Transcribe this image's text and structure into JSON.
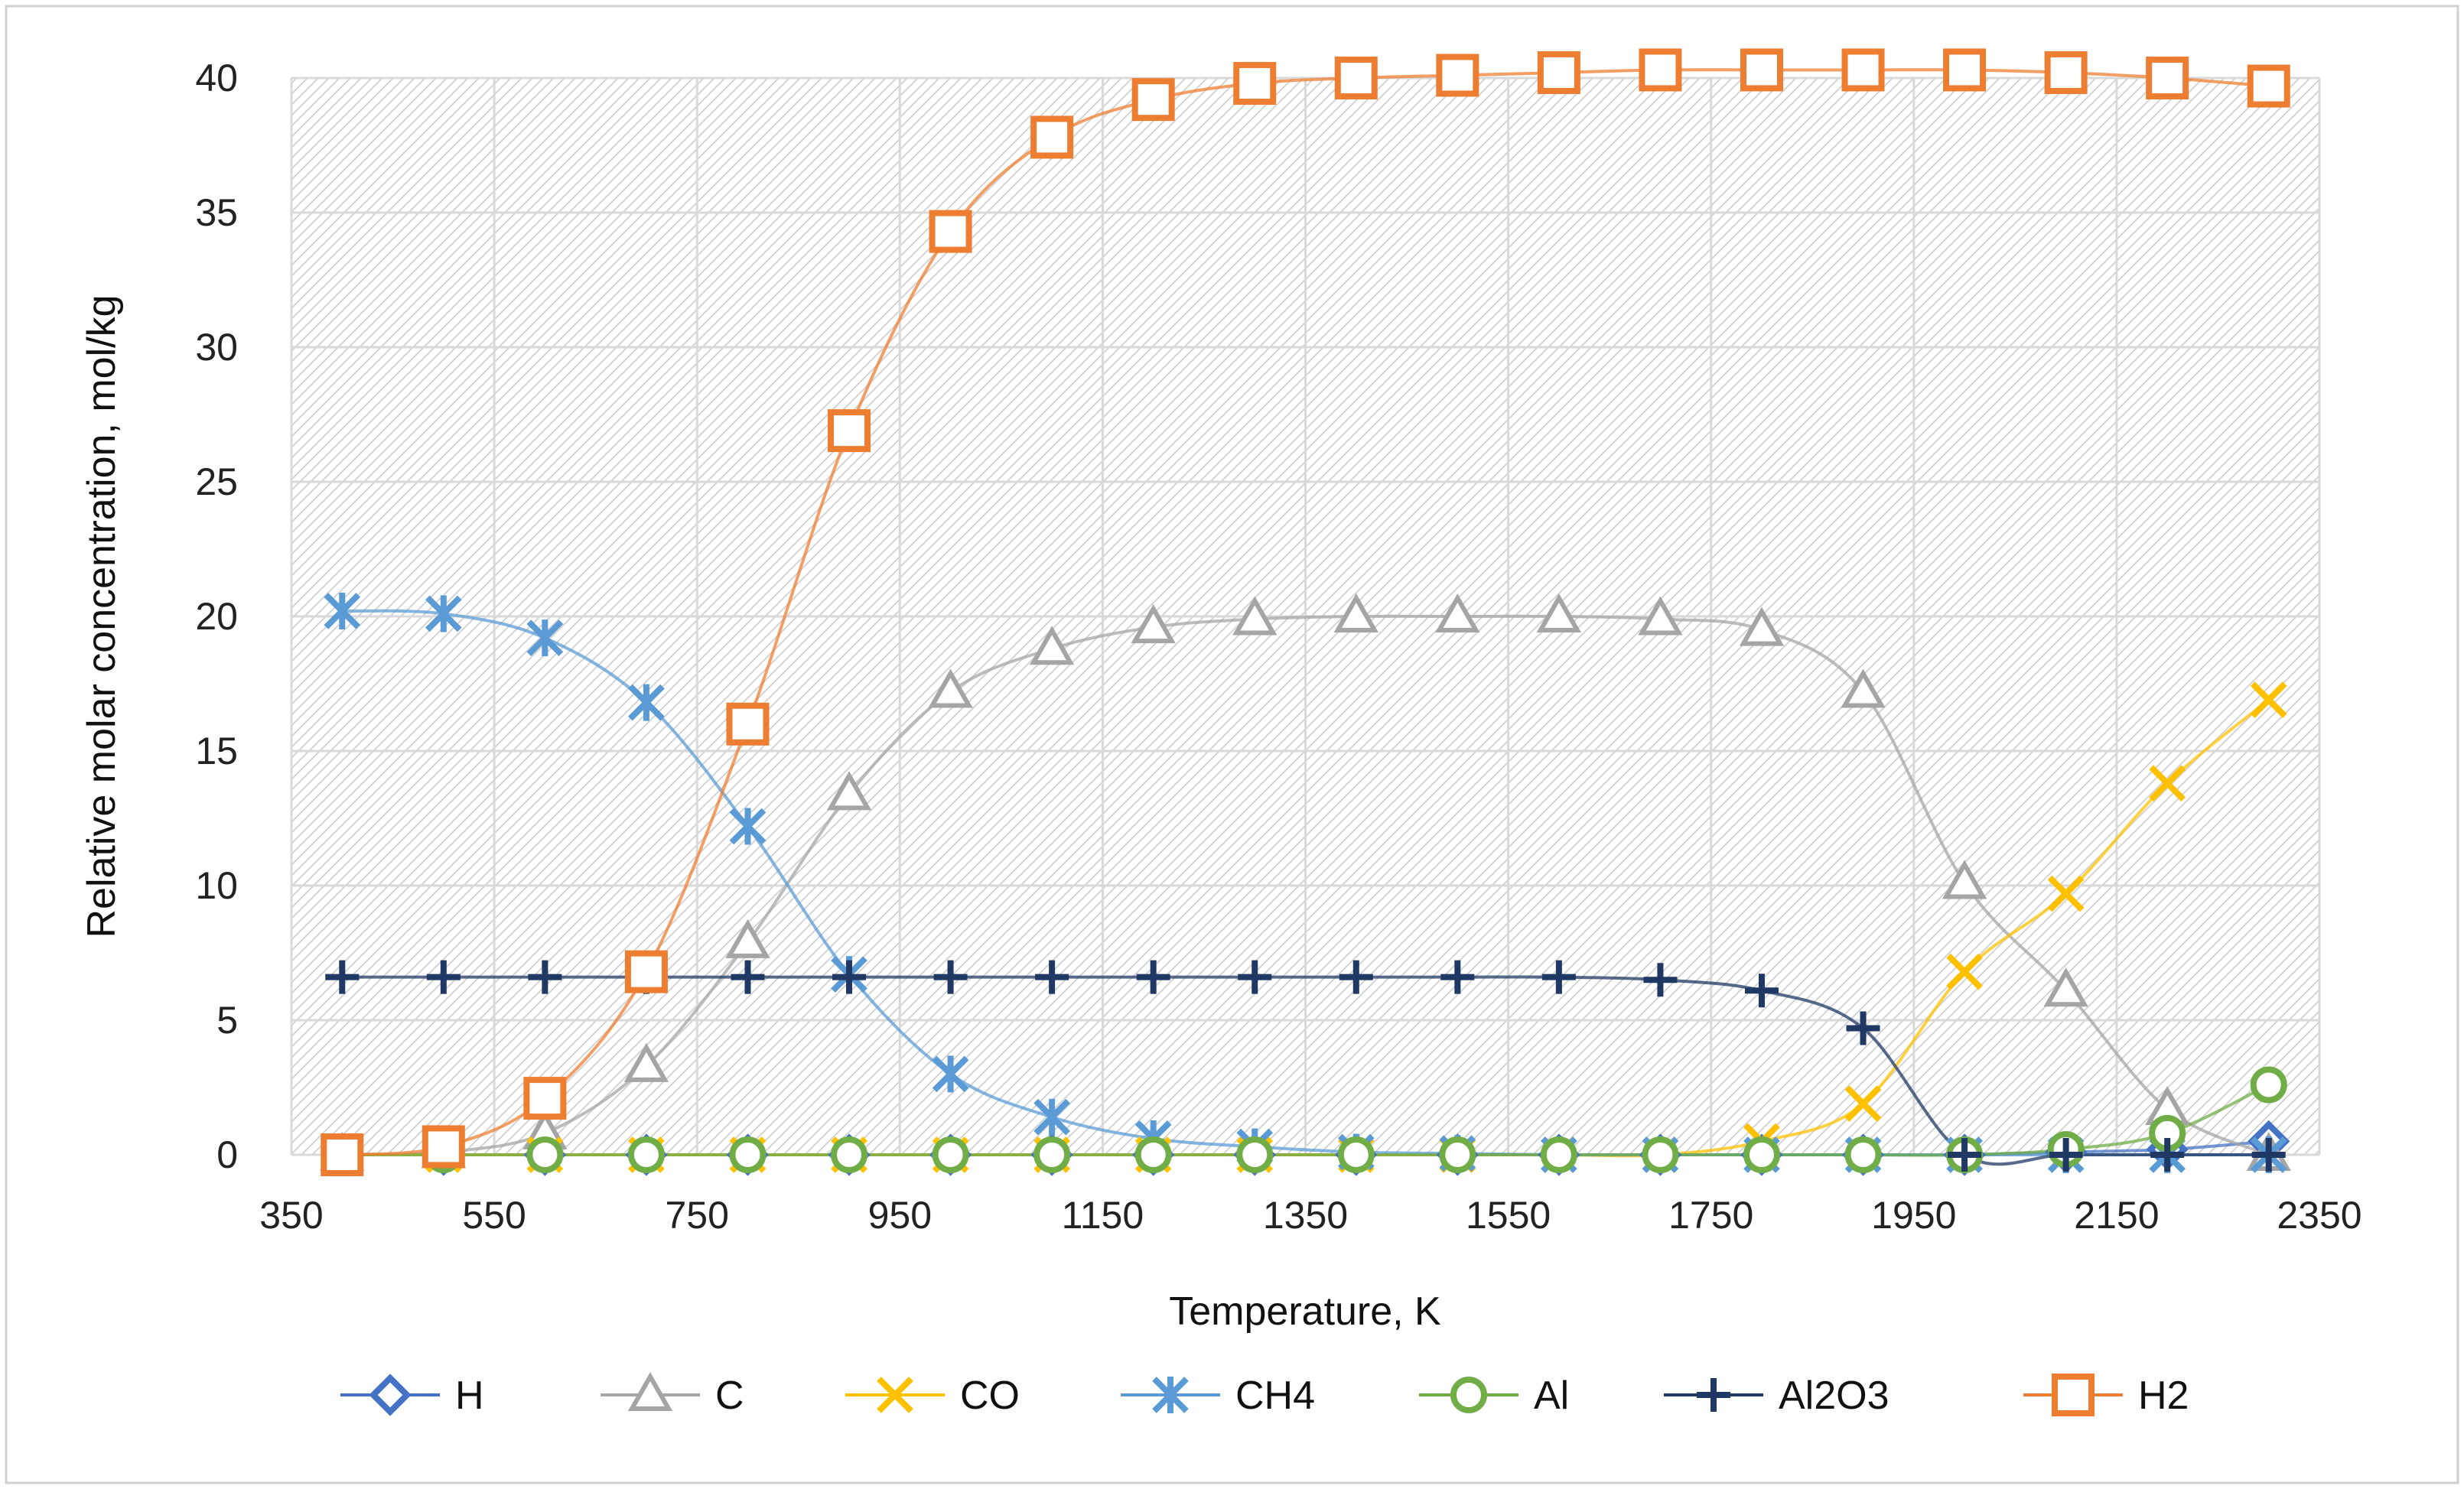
{
  "chart_data": {
    "type": "line",
    "title": "",
    "xlabel": "Temperature, K",
    "ylabel": "Relative molar concentration, mol/kg",
    "xlim": [
      350,
      2350
    ],
    "ylim": [
      0,
      40
    ],
    "xticks": [
      350,
      550,
      750,
      950,
      1150,
      1350,
      1550,
      1750,
      1950,
      2150,
      2350
    ],
    "yticks": [
      0,
      5,
      10,
      15,
      20,
      25,
      30,
      35,
      40
    ],
    "x": [
      400,
      500,
      600,
      700,
      800,
      900,
      1000,
      1100,
      1200,
      1300,
      1400,
      1500,
      1600,
      1700,
      1800,
      1900,
      2000,
      2100,
      2200,
      2300
    ],
    "legend_position": "bottom",
    "grid": true,
    "series": [
      {
        "name": "H",
        "color": "#4472c4",
        "marker": "diamond",
        "values": [
          0,
          0,
          0,
          0,
          0,
          0,
          0,
          0,
          0,
          0,
          0,
          0,
          0,
          0,
          0,
          0,
          0,
          0.1,
          0.2,
          0.5
        ]
      },
      {
        "name": "C",
        "color": "#a5a5a5",
        "marker": "triangle",
        "values": [
          0,
          0.1,
          0.8,
          3.3,
          7.9,
          13.4,
          17.2,
          18.8,
          19.6,
          19.9,
          20.0,
          20.0,
          20.0,
          19.9,
          19.5,
          17.2,
          10.1,
          6.1,
          1.7,
          0
        ]
      },
      {
        "name": "CO",
        "color": "#ffc000",
        "marker": "x",
        "values": [
          0,
          0,
          0,
          0,
          0,
          0,
          0,
          0,
          0,
          0,
          0,
          0,
          0,
          0,
          0.5,
          1.9,
          6.8,
          9.7,
          13.8,
          16.9
        ]
      },
      {
        "name": "CH4",
        "color": "#5b9bd5",
        "marker": "star",
        "values": [
          20.2,
          20.1,
          19.2,
          16.8,
          12.2,
          6.7,
          3.0,
          1.4,
          0.6,
          0.3,
          0.1,
          0.05,
          0,
          0,
          0,
          0,
          0,
          0,
          0,
          0
        ]
      },
      {
        "name": "Al",
        "color": "#70ad47",
        "marker": "circle",
        "values": [
          0,
          0,
          0,
          0,
          0,
          0,
          0,
          0,
          0,
          0,
          0,
          0,
          0,
          0,
          0,
          0,
          0,
          0.2,
          0.8,
          2.6
        ]
      },
      {
        "name": "Al2O3",
        "color": "#203864",
        "marker": "plus",
        "values": [
          6.6,
          6.6,
          6.6,
          6.6,
          6.6,
          6.6,
          6.6,
          6.6,
          6.6,
          6.6,
          6.6,
          6.6,
          6.6,
          6.5,
          6.1,
          4.7,
          0,
          0,
          0,
          0
        ]
      },
      {
        "name": "H2",
        "color": "#ed7d31",
        "marker": "square",
        "values": [
          0,
          0.3,
          2.1,
          6.8,
          16.0,
          26.9,
          34.3,
          37.8,
          39.2,
          39.8,
          40.0,
          40.1,
          40.2,
          40.3,
          40.3,
          40.3,
          40.3,
          40.2,
          40.0,
          39.7
        ]
      }
    ]
  }
}
